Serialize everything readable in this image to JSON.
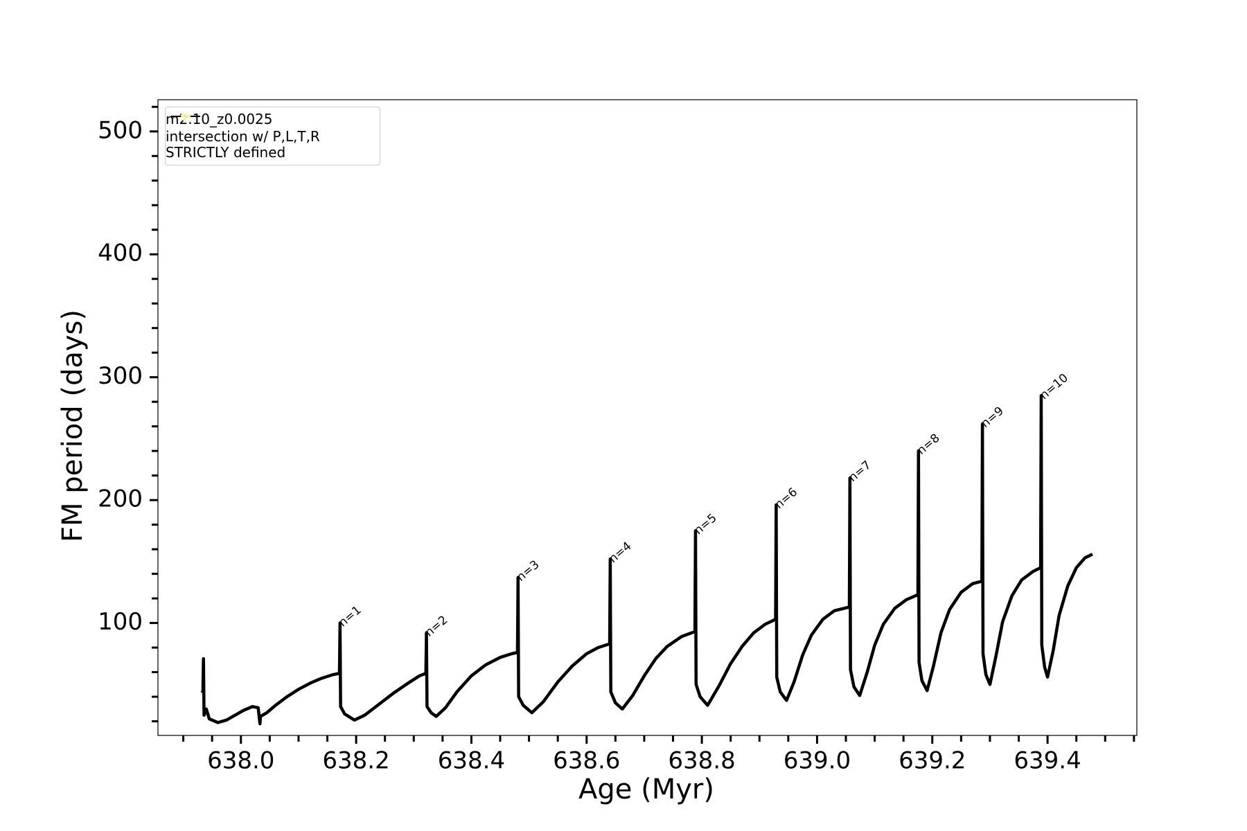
{
  "chart_data": {
    "type": "line",
    "xlabel": "Age (Myr)",
    "ylabel": "FM period (days)",
    "xlim": [
      637.856,
      639.555
    ],
    "ylim": [
      8.5,
      525.8
    ],
    "xticks": [
      {
        "value": 638.0,
        "label": "638.0"
      },
      {
        "value": 638.2,
        "label": "638.2"
      },
      {
        "value": 638.4,
        "label": "638.4"
      },
      {
        "value": 638.6,
        "label": "638.6"
      },
      {
        "value": 638.8,
        "label": "638.8"
      },
      {
        "value": 639.0,
        "label": "639.0"
      },
      {
        "value": 639.2,
        "label": "639.2"
      },
      {
        "value": 639.4,
        "label": "639.4"
      }
    ],
    "xminorticks": [
      637.9,
      637.95,
      638.05,
      638.1,
      638.15,
      638.25,
      638.3,
      638.35,
      638.45,
      638.5,
      638.55,
      638.65,
      638.7,
      638.75,
      638.85,
      638.9,
      638.95,
      639.05,
      639.1,
      639.15,
      639.25,
      639.3,
      639.35,
      639.45,
      639.5,
      639.55
    ],
    "yticks": [
      100,
      200,
      300,
      400,
      500
    ],
    "yminorticks": [
      20,
      40,
      60,
      80,
      120,
      140,
      160,
      180,
      220,
      240,
      260,
      280,
      320,
      340,
      360,
      380,
      420,
      440,
      460,
      480,
      520
    ],
    "legend": "upper left",
    "series": [
      {
        "name": "m2.10_z0.0025",
        "color": "#000000",
        "x": [
          637.932,
          637.934,
          637.935,
          637.936,
          637.94,
          637.945,
          637.96,
          637.975,
          637.99,
          638.005,
          638.02,
          638.03,
          638.033,
          638.034,
          638.045,
          638.06,
          638.08,
          638.1,
          638.12,
          638.14,
          638.16,
          638.171,
          638.172,
          638.173,
          638.18,
          638.197,
          638.215,
          638.24,
          638.265,
          638.29,
          638.31,
          638.321,
          638.322,
          638.323,
          638.33,
          638.339,
          638.355,
          638.375,
          638.4,
          638.425,
          638.45,
          638.47,
          638.48,
          638.481,
          638.482,
          638.49,
          638.505,
          638.525,
          638.55,
          638.575,
          638.6,
          638.62,
          638.64,
          638.641,
          638.642,
          638.65,
          638.662,
          638.68,
          638.7,
          638.72,
          638.74,
          638.765,
          638.788,
          638.789,
          638.79,
          638.797,
          638.81,
          638.83,
          638.85,
          638.87,
          638.89,
          638.91,
          638.928,
          638.929,
          638.93,
          638.936,
          638.947,
          638.96,
          638.975,
          638.99,
          639.01,
          639.03,
          639.056,
          639.057,
          639.058,
          639.064,
          639.074,
          639.087,
          639.1,
          639.115,
          639.135,
          639.155,
          639.175,
          639.176,
          639.177,
          639.182,
          639.191,
          639.202,
          639.215,
          639.23,
          639.25,
          639.27,
          639.286,
          639.287,
          639.288,
          639.293,
          639.3,
          639.31,
          639.322,
          639.338,
          639.355,
          639.375,
          639.388,
          639.389,
          639.39,
          639.395,
          639.4,
          639.41,
          639.42,
          639.435,
          639.45,
          639.465,
          639.478
        ],
        "values": [
          45,
          44,
          71,
          25,
          30,
          22,
          19,
          21,
          25,
          29,
          32,
          31,
          18,
          24,
          27,
          33,
          40,
          46,
          51,
          55,
          58,
          59,
          100,
          32,
          26,
          21,
          25,
          34,
          43,
          51,
          57,
          59,
          92,
          32,
          27,
          24,
          31,
          44,
          57,
          66,
          72,
          75,
          76,
          137,
          40,
          33,
          27,
          36,
          52,
          65,
          75,
          80,
          83,
          152,
          44,
          35,
          30,
          41,
          57,
          71,
          81,
          89,
          93,
          175,
          50,
          40,
          33,
          49,
          67,
          81,
          92,
          99,
          103,
          196,
          56,
          44,
          37,
          52,
          74,
          90,
          103,
          110,
          113,
          218,
          62,
          48,
          41,
          60,
          82,
          99,
          112,
          119,
          123,
          240,
          68,
          53,
          45,
          65,
          92,
          111,
          125,
          132,
          134,
          262,
          75,
          58,
          50,
          72,
          101,
          122,
          135,
          142,
          145,
          285,
          82,
          64,
          56,
          78,
          106,
          130,
          145,
          153,
          156
        ]
      },
      {
        "name": "intersection w/ P,L,T,R\nSTRICTLY defined",
        "color": "#ffffcc",
        "type": "scatter",
        "x": [],
        "values": []
      }
    ],
    "annotations": [
      {
        "text": "n=1",
        "x": 638.172,
        "y": 100
      },
      {
        "text": "n=2",
        "x": 638.322,
        "y": 92
      },
      {
        "text": "n=3",
        "x": 638.481,
        "y": 137
      },
      {
        "text": "n=4",
        "x": 638.641,
        "y": 152
      },
      {
        "text": "n=5",
        "x": 638.789,
        "y": 175
      },
      {
        "text": "n=6",
        "x": 638.929,
        "y": 196
      },
      {
        "text": "n=7",
        "x": 639.057,
        "y": 218
      },
      {
        "text": "n=8",
        "x": 639.176,
        "y": 240
      },
      {
        "text": "n=9",
        "x": 639.287,
        "y": 262
      },
      {
        "text": "n=10",
        "x": 639.389,
        "y": 285
      }
    ]
  }
}
